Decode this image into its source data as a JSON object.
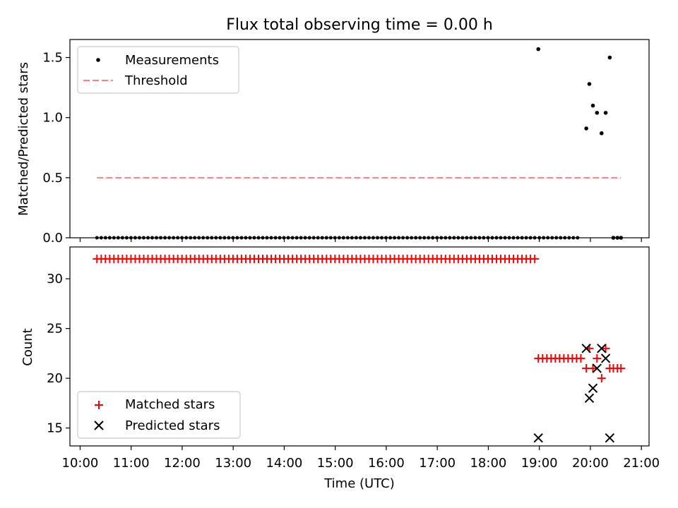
{
  "chart_data": [
    {
      "type": "scatter",
      "title": "Flux total observing time = 0.00 h",
      "ylabel": "Matched/Predicted stars",
      "xlabel": "",
      "xlim": [
        9.8,
        21.15
      ],
      "ylim": [
        0,
        1.65
      ],
      "yticks": [
        0,
        0.5,
        1.0,
        1.5
      ],
      "ytick_labels": [
        "0.0",
        "0.5",
        "1.0",
        "1.5"
      ],
      "legend_position": "top-left",
      "series": [
        {
          "name": "Measurements",
          "marker": "dot",
          "color": "#000000",
          "zero_run_start": 10.33,
          "zero_run_end": 18.92,
          "zero_run_step": 0.0833,
          "zero_run2_start": 19.0,
          "zero_run2_end": 19.83,
          "zero_run2_step": 0.0833,
          "points": [
            {
              "x": 18.98,
              "y": 1.57
            },
            {
              "x": 19.92,
              "y": 0.91
            },
            {
              "x": 19.98,
              "y": 1.28
            },
            {
              "x": 20.05,
              "y": 1.1
            },
            {
              "x": 20.13,
              "y": 1.04
            },
            {
              "x": 20.22,
              "y": 0.87
            },
            {
              "x": 20.3,
              "y": 1.04
            },
            {
              "x": 20.38,
              "y": 1.5
            },
            {
              "x": 20.45,
              "y": 0.0
            },
            {
              "x": 20.53,
              "y": 0.0
            },
            {
              "x": 20.6,
              "y": 0.0
            }
          ]
        },
        {
          "name": "Threshold",
          "marker": "dashed-line",
          "color": "#ff7f7f",
          "x": [
            10.33,
            20.6
          ],
          "y": [
            0.5,
            0.5
          ]
        }
      ]
    },
    {
      "type": "scatter",
      "ylabel": "Count",
      "xlabel": "Time (UTC)",
      "xlim": [
        9.8,
        21.15
      ],
      "ylim": [
        13.2,
        33.2
      ],
      "yticks": [
        15,
        20,
        25,
        30
      ],
      "ytick_labels": [
        "15",
        "20",
        "25",
        "30"
      ],
      "xticks": [
        10,
        11,
        12,
        13,
        14,
        15,
        16,
        17,
        18,
        19,
        20,
        21
      ],
      "xtick_labels": [
        "10:00",
        "11:00",
        "12:00",
        "13:00",
        "14:00",
        "15:00",
        "16:00",
        "17:00",
        "18:00",
        "19:00",
        "20:00",
        "21:00"
      ],
      "legend_position": "bottom-left",
      "series": [
        {
          "name": "Matched stars",
          "marker": "plus",
          "color": "#ff0000",
          "run1": {
            "start": 10.33,
            "end": 18.92,
            "step": 0.0833,
            "value": 32
          },
          "run2": {
            "start": 18.98,
            "end": 19.83,
            "step": 0.0833,
            "value": 22
          },
          "points": [
            {
              "x": 19.92,
              "y": 21
            },
            {
              "x": 19.98,
              "y": 23
            },
            {
              "x": 20.05,
              "y": 21
            },
            {
              "x": 20.13,
              "y": 22
            },
            {
              "x": 20.22,
              "y": 20
            },
            {
              "x": 20.3,
              "y": 23
            },
            {
              "x": 20.38,
              "y": 21
            },
            {
              "x": 20.45,
              "y": 21
            },
            {
              "x": 20.53,
              "y": 21
            },
            {
              "x": 20.6,
              "y": 21
            }
          ]
        },
        {
          "name": "Predicted stars",
          "marker": "x",
          "color": "#000000",
          "points": [
            {
              "x": 18.98,
              "y": 14
            },
            {
              "x": 19.92,
              "y": 23
            },
            {
              "x": 19.98,
              "y": 18
            },
            {
              "x": 20.05,
              "y": 19
            },
            {
              "x": 20.13,
              "y": 21
            },
            {
              "x": 20.22,
              "y": 23
            },
            {
              "x": 20.3,
              "y": 22
            },
            {
              "x": 20.38,
              "y": 14
            }
          ]
        }
      ]
    }
  ]
}
